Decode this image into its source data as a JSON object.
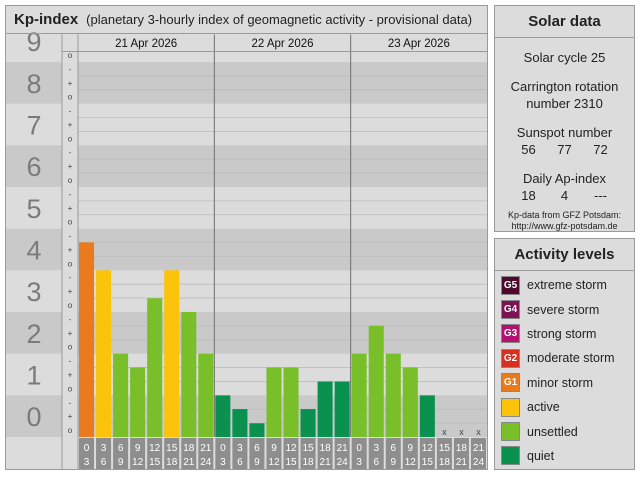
{
  "header": {
    "title": "Kp-index",
    "subtitle": "(planetary 3-hourly index of geomagnetic activity - provisional data)"
  },
  "colors": {
    "quiet": "#0a9150",
    "unsettled": "#78bf2a",
    "active": "#fbc30a",
    "minor_storm": "#e97a1d",
    "moderate_storm": "#d7301f",
    "strong_storm": "#b5126f",
    "severe_storm": "#7c1252",
    "extreme_storm": "#4d0a2e"
  },
  "chart_data": {
    "type": "bar",
    "y_ticks": [
      "0",
      "1",
      "2",
      "3",
      "4",
      "5",
      "6",
      "7",
      "8",
      "9"
    ],
    "minor_tick_labels": [
      "o",
      "+",
      "-"
    ],
    "ylim": [
      0,
      9.33
    ],
    "days": [
      {
        "date": "21 Apr 2026"
      },
      {
        "date": "22 Apr 2026"
      },
      {
        "date": "23 Apr 2026"
      }
    ],
    "interval_start": [
      "0",
      "3",
      "6",
      "9",
      "12",
      "15",
      "18",
      "21"
    ],
    "interval_end": [
      "3",
      "6",
      "9",
      "12",
      "15",
      "18",
      "21",
      "24"
    ],
    "missing_marker": "x",
    "values": [
      4.67,
      4.0,
      2.0,
      1.67,
      3.33,
      4.0,
      3.0,
      2.0,
      1.0,
      0.67,
      0.33,
      1.67,
      1.67,
      0.67,
      1.33,
      1.33,
      2.0,
      2.67,
      2.0,
      1.67,
      1.0,
      null,
      null,
      null
    ],
    "levels": [
      "minor_storm",
      "active",
      "unsettled",
      "unsettled",
      "unsettled",
      "active",
      "unsettled",
      "unsettled",
      "quiet",
      "quiet",
      "quiet",
      "unsettled",
      "unsettled",
      "quiet",
      "quiet",
      "quiet",
      "unsettled",
      "unsettled",
      "unsettled",
      "unsettled",
      "quiet",
      null,
      null,
      null
    ]
  },
  "solar": {
    "title": "Solar data",
    "cycle_label": "Solar cycle 25",
    "carrington_label": "Carrington rotation",
    "carrington_value": "number 2310",
    "sunspot_label": "Sunspot number",
    "sunspot_values": [
      "56",
      "77",
      "72"
    ],
    "ap_label": "Daily Ap-index",
    "ap_values": [
      "18",
      "4",
      "---"
    ],
    "credit_line1": "Kp-data from GFZ Potsdam:",
    "credit_line2": "http://www.gfz-potsdam.de"
  },
  "activity": {
    "title": "Activity levels",
    "items": [
      {
        "badge": "G5",
        "label": "extreme storm",
        "color": "#4d0a2e"
      },
      {
        "badge": "G4",
        "label": "severe storm",
        "color": "#7c1252"
      },
      {
        "badge": "G3",
        "label": "strong storm",
        "color": "#b5126f"
      },
      {
        "badge": "G2",
        "label": "moderate storm",
        "color": "#d7301f"
      },
      {
        "badge": "G1",
        "label": "minor storm",
        "color": "#e97a1d"
      },
      {
        "badge": "",
        "label": "active",
        "color": "#fbc30a"
      },
      {
        "badge": "",
        "label": "unsettled",
        "color": "#78bf2a"
      },
      {
        "badge": "",
        "label": "quiet",
        "color": "#0a9150"
      }
    ]
  }
}
